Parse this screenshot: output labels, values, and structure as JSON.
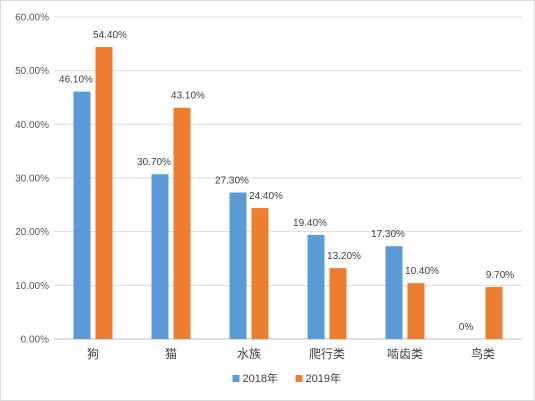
{
  "chart_data": {
    "type": "bar",
    "categories": [
      "狗",
      "猫",
      "水族",
      "爬行类",
      "啮齿类",
      "鸟类"
    ],
    "series": [
      {
        "name": "2018年",
        "values": [
          46.1,
          30.7,
          27.3,
          19.4,
          17.3,
          0
        ],
        "labels": [
          "46.10%",
          "30.70%",
          "27.30%",
          "19.40%",
          "17.30%",
          "0%"
        ],
        "color": "#5b9bd5"
      },
      {
        "name": "2019年",
        "values": [
          54.4,
          43.1,
          24.4,
          13.2,
          10.4,
          9.7
        ],
        "labels": [
          "54.40%",
          "43.10%",
          "24.40%",
          "13.20%",
          "10.40%",
          "9.70%"
        ],
        "color": "#ed7d31"
      }
    ],
    "ylim": [
      0,
      60
    ],
    "yticks": [
      "0.00%",
      "10.00%",
      "20.00%",
      "30.00%",
      "40.00%",
      "50.00%",
      "60.00%"
    ],
    "grid": true,
    "legend": "bottom"
  }
}
